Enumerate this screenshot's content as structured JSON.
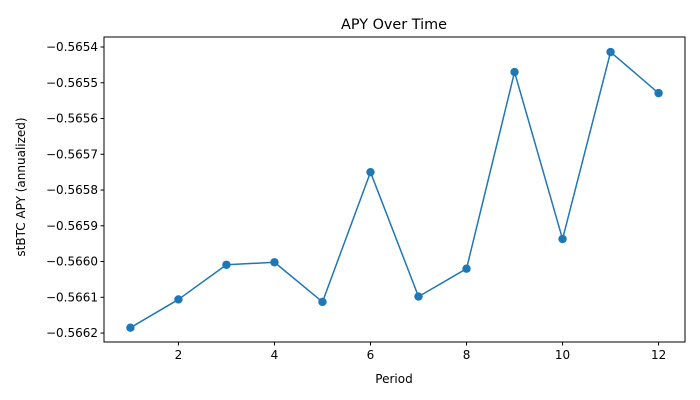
{
  "chart_data": {
    "type": "line",
    "title": "APY Over Time",
    "xlabel": "Period",
    "ylabel": "stBTC APY (annualized)",
    "x": [
      1,
      2,
      3,
      4,
      5,
      6,
      7,
      8,
      9,
      10,
      11,
      12
    ],
    "series": [
      {
        "values": [
          -0.566185,
          -0.566106,
          -0.566009,
          -0.566002,
          -0.566113,
          -0.56575,
          -0.566098,
          -0.56602,
          -0.56547,
          -0.565937,
          -0.565414,
          -0.565529
        ],
        "color": "#1f77b4"
      }
    ],
    "xlim": [
      0.45,
      12.55
    ],
    "ylim": [
      -0.566225,
      -0.565372
    ],
    "xticks": [
      2,
      4,
      6,
      8,
      10,
      12
    ],
    "xtick_labels": [
      "2",
      "4",
      "6",
      "8",
      "10",
      "12"
    ],
    "yticks": [
      -0.5662,
      -0.5661,
      -0.566,
      -0.5659,
      -0.5658,
      -0.5657,
      -0.5656,
      -0.5655,
      -0.5654
    ],
    "ytick_labels": [
      "−0.5662",
      "−0.5661",
      "−0.5660",
      "−0.5659",
      "−0.5658",
      "−0.5657",
      "−0.5656",
      "−0.5655",
      "−0.5654"
    ],
    "grid": false,
    "marker": "circle"
  }
}
